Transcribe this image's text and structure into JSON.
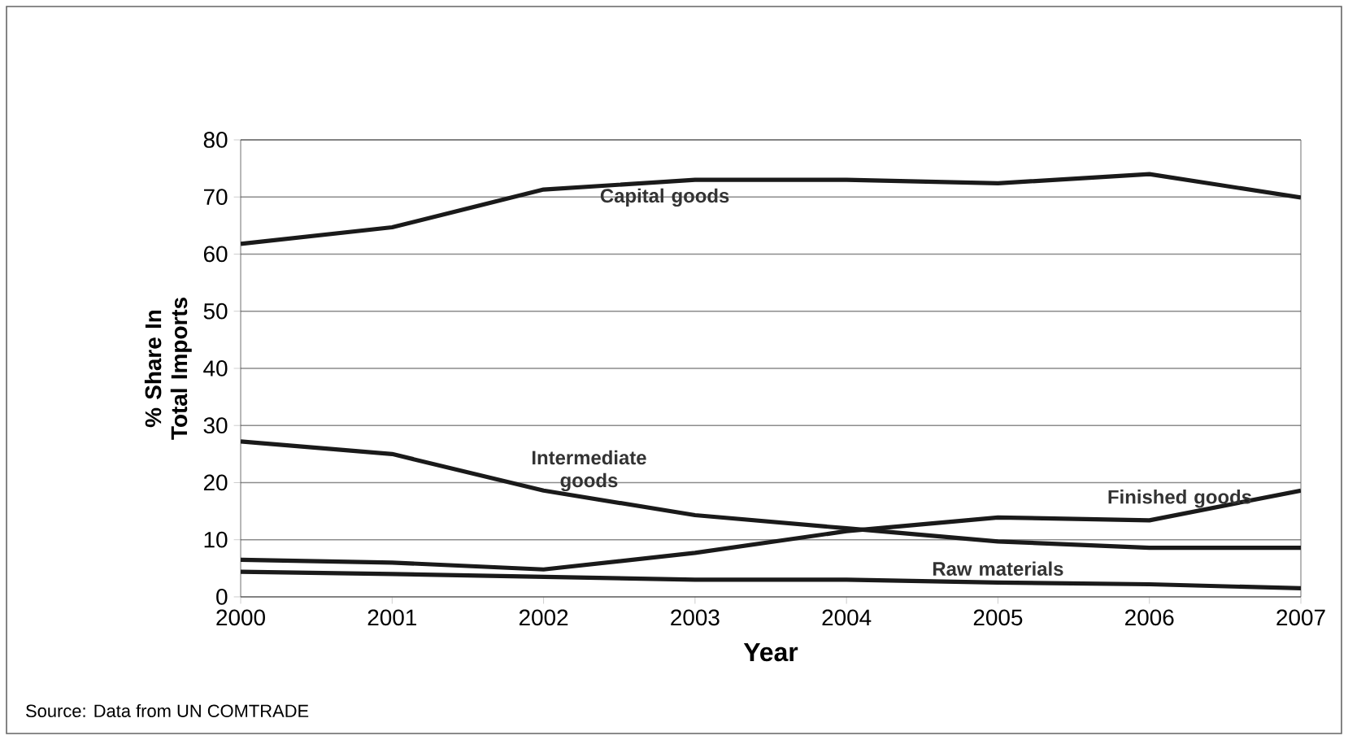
{
  "chart_data": {
    "type": "line",
    "xlabel": "Year",
    "ylabel": "% Share In Total Imports",
    "x": [
      2000,
      2001,
      2002,
      2003,
      2004,
      2005,
      2006,
      2007
    ],
    "series": [
      {
        "color": "#1a1a1a",
        "values": [
          61.8,
          64.7,
          71.3,
          73,
          73,
          72.4,
          74,
          69.9
        ]
      },
      {
        "color": "#1a1a1a",
        "values": [
          27.2,
          25,
          18.6,
          14.3,
          12,
          9.7,
          8.6,
          8.6
        ]
      },
      {
        "color": "#1a1a1a",
        "values": [
          6.5,
          6,
          4.8,
          7.7,
          11.5,
          13.9,
          13.4,
          18.6
        ]
      },
      {
        "color": "#1a1a1a",
        "values": [
          4.4,
          4,
          3.5,
          3,
          3,
          2.5,
          2.2,
          1.5
        ]
      }
    ],
    "xlim": [
      2000,
      2007
    ],
    "xticks": [
      2000,
      2001,
      2002,
      2003,
      2004,
      2005,
      2006,
      2007
    ],
    "ylim": [
      0,
      80
    ],
    "yticks": [
      0,
      10,
      20,
      30,
      40,
      50,
      60,
      70,
      80
    ],
    "grid": "y",
    "marker": "none",
    "line_style": "solid",
    "annotations": [
      {
        "text": "Capital goods",
        "x": 2002.8,
        "y": 72.7
      },
      {
        "text": "Intermediate goods",
        "x": 2002.3,
        "y": 17.3
      },
      {
        "text": "Finished goods",
        "x": 2006.2,
        "y": 14.4
      },
      {
        "text": "Raw materials",
        "x": 2005,
        "y": 2.5
      },
      "Source: Data from UN COMTRADE"
    ]
  }
}
